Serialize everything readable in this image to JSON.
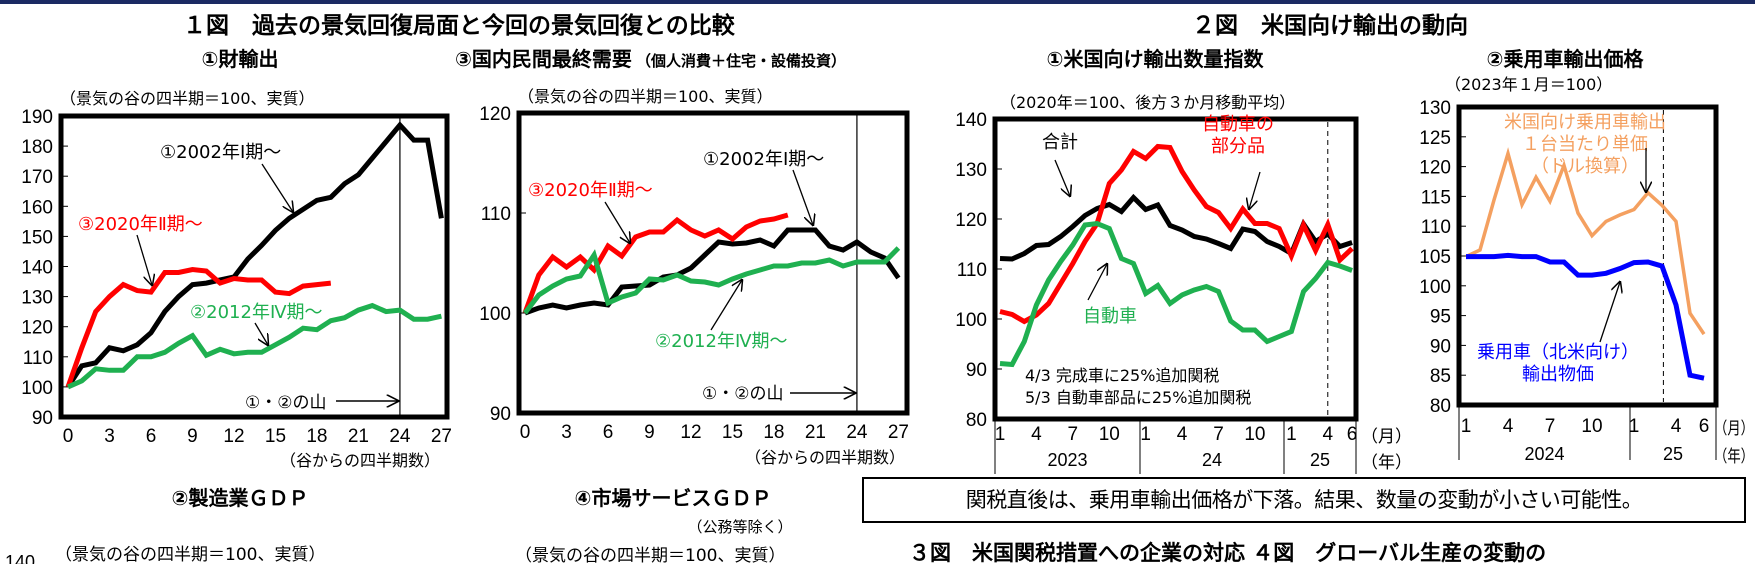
{
  "top_bar_color": "#1b2a63",
  "figure1": {
    "title": "１図　過去の景気回復局面と今回の景気回復との比較",
    "panel2_title": "②製造業ＧＤＰ",
    "panel2_unit": "（景気の谷の四半期＝100、実質）",
    "panel2_first_tick": "140",
    "panel4_title": "④市場サービスＧＤＰ",
    "panel4_subtitle": "（公務等除く）",
    "panel4_unit": "（景気の谷の四半期＝100、実質）"
  },
  "figure2": {
    "title": "２図　米国向け輸出の動向"
  },
  "callout": "関税直後は、乗用車輸出価格が下落。結果、数量の変動が小さい可能性。",
  "bottom_titles": "３図　米国関税措置への企業の対応 ４図　グローバル生産の変動の",
  "chart_data": [
    {
      "type": "line",
      "title": "①財輸出",
      "subtitle": "",
      "unit_note": "（景気の谷の四半期＝100、実質）",
      "xlabel": "（谷からの四半期数）",
      "ylim": [
        90,
        190
      ],
      "y_ticks": [
        "190",
        "180",
        "170",
        "160",
        "150",
        "140",
        "130",
        "120",
        "110",
        "100",
        "90"
      ],
      "x_ticks": [
        "0",
        "3",
        "6",
        "9",
        "12",
        "15",
        "18",
        "21",
        "24",
        "27"
      ],
      "grid": false,
      "peak_label": "①・②の山",
      "peak_x": 24,
      "series": [
        {
          "name": "①2002年Ⅰ期～",
          "color": "#000000",
          "values": [
            100,
            107,
            108,
            113,
            112,
            114,
            118,
            125,
            130,
            134,
            134.5,
            135.5,
            136.5,
            142.5,
            147,
            152,
            156,
            159,
            162,
            163,
            167.5,
            170.5,
            176,
            181.5,
            187,
            182,
            182,
            156
          ]
        },
        {
          "name": "③2020年Ⅱ期～",
          "color": "#ff0000",
          "values": [
            100,
            113,
            125,
            130,
            134,
            132,
            131.5,
            138,
            138,
            139,
            138.5,
            134.5,
            136,
            135.5,
            135.5,
            131.5,
            131,
            133.5,
            134,
            134.5
          ]
        },
        {
          "name": "②2012年Ⅳ期～",
          "color": "#1fb050",
          "values": [
            100,
            102,
            106,
            105.5,
            105.5,
            110,
            110,
            111.5,
            114.5,
            117,
            110.5,
            112.5,
            111,
            111.5,
            111.5,
            114,
            116.5,
            119.5,
            119,
            122,
            123,
            125.5,
            127,
            125,
            125.5,
            122.5,
            122.5,
            123.5
          ]
        }
      ]
    },
    {
      "type": "line",
      "title": "③国内民間最終需要",
      "subtitle": "（個人消費＋住宅・設備投資）",
      "unit_note": "（景気の谷の四半期＝100、実質）",
      "xlabel": "（谷からの四半期数）",
      "ylim": [
        90,
        120
      ],
      "y_ticks": [
        "120",
        "110",
        "100",
        "90"
      ],
      "x_ticks": [
        "0",
        "3",
        "6",
        "9",
        "12",
        "15",
        "18",
        "21",
        "24",
        "27"
      ],
      "grid": false,
      "peak_label": "①・②の山",
      "peak_x": 24,
      "series": [
        {
          "name": "①2002年Ⅰ期～",
          "color": "#000000",
          "values": [
            100,
            100.5,
            100.8,
            100.5,
            100.8,
            101,
            100.8,
            102.6,
            102.7,
            102.8,
            103.6,
            103.8,
            104.5,
            105.8,
            107.1,
            106.9,
            107,
            107.3,
            106.7,
            108.3,
            108.3,
            108.3,
            106.7,
            106.3,
            107.1,
            106.1,
            105.5,
            103.5
          ]
        },
        {
          "name": "③2020年Ⅱ期～",
          "color": "#ff0000",
          "values": [
            100,
            103.8,
            105.6,
            104.6,
            105.6,
            104.3,
            106.7,
            105.7,
            107.6,
            108.1,
            108.1,
            109.3,
            108.3,
            107.7,
            108.3,
            107.4,
            108.6,
            109.2,
            109.4,
            109.8
          ]
        },
        {
          "name": "②2012年Ⅳ期～",
          "color": "#1fb050",
          "values": [
            100,
            101.8,
            102.7,
            103.4,
            103.7,
            105.8,
            101,
            101.6,
            102,
            103.4,
            103.3,
            103.8,
            103.2,
            103.1,
            102.8,
            103.4,
            103.9,
            104.3,
            104.7,
            104.7,
            105,
            105,
            105.3,
            104.7,
            105.1,
            105.1,
            105.1,
            106.5
          ]
        }
      ]
    },
    {
      "type": "line",
      "title": "①米国向け輸出数量指数",
      "unit_note": "（2020年＝100、後方３か月移動平均）",
      "ylim": [
        80,
        140
      ],
      "y_ticks": [
        "140",
        "130",
        "120",
        "110",
        "100",
        "90",
        "80"
      ],
      "x_ticks": [
        "1",
        "4",
        "7",
        "10",
        "1",
        "4",
        "7",
        "10",
        "1",
        "4",
        "6"
      ],
      "x_tick_unit": "（月）",
      "years": [
        "2023",
        "24",
        "25"
      ],
      "year_unit": "（年）",
      "grid": false,
      "marker_x": "2025-04",
      "x": [
        "2023-01",
        "2023-02",
        "2023-03",
        "2023-04",
        "2023-05",
        "2023-06",
        "2023-07",
        "2023-08",
        "2023-09",
        "2023-10",
        "2023-11",
        "2023-12",
        "2024-01",
        "2024-02",
        "2024-03",
        "2024-04",
        "2024-05",
        "2024-06",
        "2024-07",
        "2024-08",
        "2024-09",
        "2024-10",
        "2024-11",
        "2024-12",
        "2025-01",
        "2025-02",
        "2025-03",
        "2025-04",
        "2025-05",
        "2025-06"
      ],
      "notes": [
        "4/3  完成車に25%追加関税",
        "5/3  自動車部品に25%追加関税"
      ],
      "series": [
        {
          "name": "合計",
          "color": "#000000",
          "values": [
            112.1,
            112,
            113.1,
            114.7,
            114.9,
            116.5,
            118.5,
            120.7,
            122.1,
            122.9,
            121.5,
            124.3,
            121.9,
            122.8,
            118.7,
            117.8,
            116.5,
            116,
            115.1,
            114.1,
            118,
            117.5,
            115.5,
            114.5,
            113.1,
            119,
            115.5,
            117,
            114.5,
            115.3
          ]
        },
        {
          "name": "自動車の部分品",
          "label_lines": [
            "自動車の",
            "部分品"
          ],
          "color": "#ff0000",
          "values": [
            101.5,
            100.9,
            99.5,
            100.8,
            103.1,
            107.1,
            111.1,
            115.5,
            119.1,
            127.1,
            129.8,
            133.5,
            132.1,
            134.5,
            134.3,
            129.5,
            125.8,
            122.5,
            121.3,
            118.1,
            122,
            119.1,
            119.1,
            118.1,
            112.6,
            118.8,
            113.7,
            118.9,
            111.8,
            114.1
          ]
        },
        {
          "name": "自動車",
          "color": "#1fb050",
          "values": [
            91.1,
            90.9,
            95.5,
            102.8,
            107.8,
            111.5,
            114.8,
            118.8,
            119.1,
            118.1,
            112.1,
            111.1,
            105.1,
            106.7,
            103.1,
            104.8,
            105.8,
            106.5,
            105.5,
            99.6,
            97.8,
            97.8,
            95.5,
            96.5,
            97.5,
            105.5,
            108.1,
            111.3,
            110.6,
            109.7
          ]
        }
      ]
    },
    {
      "type": "line",
      "title": "②乗用車輸出価格",
      "unit_note": "（2023年１月＝100）",
      "ylim": [
        80,
        130
      ],
      "y_ticks": [
        "130",
        "125",
        "120",
        "115",
        "110",
        "105",
        "100",
        "95",
        "90",
        "85",
        "80"
      ],
      "x_ticks": [
        "1",
        "4",
        "7",
        "10",
        "1",
        "4",
        "6"
      ],
      "x_tick_unit": "（月）",
      "years": [
        "2024",
        "25"
      ],
      "year_unit": "（年）",
      "grid": false,
      "marker_x": "2025-04",
      "x": [
        "2024-01",
        "2024-02",
        "2024-03",
        "2024-04",
        "2024-05",
        "2024-06",
        "2024-07",
        "2024-08",
        "2024-09",
        "2024-10",
        "2024-11",
        "2024-12",
        "2025-01",
        "2025-02",
        "2025-03",
        "2025-04",
        "2025-05",
        "2025-06"
      ],
      "series": [
        {
          "name": "米国向け乗用車輸出１台当たり単価（ドル換算）",
          "label_lines": [
            "米国向け乗用車輸出",
            "１台当たり単価",
            "（ドル換算）"
          ],
          "color": "#f4a060",
          "values": [
            104.9,
            106,
            114.4,
            122.2,
            113.6,
            118.2,
            114.2,
            120.2,
            112.2,
            108.4,
            110.8,
            111.9,
            112.8,
            115.6,
            113.5,
            110.8,
            95.4,
            91.9
          ]
        },
        {
          "name": "乗用車（北米向け）輸出物価",
          "label_lines": [
            "乗用車（北米向け）",
            "輸出物価"
          ],
          "color": "#0000ff",
          "values": [
            104.9,
            104.9,
            104.9,
            105.1,
            104.9,
            104.9,
            104,
            104,
            101.8,
            101.8,
            102.1,
            102.9,
            103.9,
            104,
            103.3,
            96.8,
            85,
            84.5
          ]
        }
      ]
    }
  ]
}
